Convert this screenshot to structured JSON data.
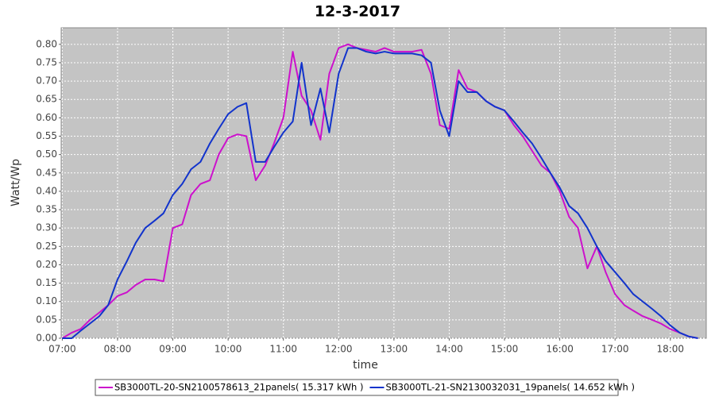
{
  "chart_data": {
    "type": "line",
    "title": "12-3-2017",
    "x_label": "time",
    "y_label": "Watt/Wp",
    "x": [
      7,
      7.17,
      7.33,
      7.5,
      7.67,
      7.83,
      8,
      8.17,
      8.33,
      8.5,
      8.67,
      8.83,
      9,
      9.17,
      9.33,
      9.5,
      9.67,
      9.83,
      10,
      10.17,
      10.33,
      10.5,
      10.67,
      10.83,
      11,
      11.17,
      11.33,
      11.5,
      11.67,
      11.83,
      12,
      12.17,
      12.33,
      12.5,
      12.67,
      12.83,
      13,
      13.17,
      13.33,
      13.5,
      13.67,
      13.83,
      14,
      14.17,
      14.33,
      14.5,
      14.67,
      14.83,
      15,
      15.17,
      15.33,
      15.5,
      15.67,
      15.83,
      16,
      16.17,
      16.33,
      16.5,
      16.67,
      16.83,
      17,
      17.17,
      17.33,
      17.5,
      17.67,
      17.83,
      18,
      18.17,
      18.33,
      18.5
    ],
    "series": [
      {
        "name": "SB3000TL-20-SN2100578613_21panels( 15.317 kWh )",
        "color": "#cc11cc",
        "values": [
          0,
          0.015,
          0.025,
          0.05,
          0.07,
          0.09,
          0.115,
          0.125,
          0.145,
          0.16,
          0.16,
          0.155,
          0.3,
          0.31,
          0.39,
          0.42,
          0.43,
          0.5,
          0.545,
          0.555,
          0.55,
          0.43,
          0.47,
          0.53,
          0.6,
          0.78,
          0.66,
          0.62,
          0.54,
          0.72,
          0.79,
          0.8,
          0.79,
          0.785,
          0.78,
          0.79,
          0.78,
          0.78,
          0.78,
          0.785,
          0.72,
          0.58,
          0.57,
          0.73,
          0.68,
          0.67,
          0.645,
          0.63,
          0.62,
          0.58,
          0.55,
          0.51,
          0.47,
          0.45,
          0.4,
          0.33,
          0.3,
          0.19,
          0.25,
          0.18,
          0.12,
          0.09,
          0.075,
          0.06,
          0.05,
          0.04,
          0.025,
          0.015,
          0.005,
          0
        ]
      },
      {
        "name": "SB3000TL-21-SN2130032031_19panels( 14.652 kWh )",
        "color": "#1133cc",
        "values": [
          0,
          0,
          0.02,
          0.04,
          0.06,
          0.09,
          0.16,
          0.21,
          0.26,
          0.3,
          0.32,
          0.34,
          0.39,
          0.42,
          0.46,
          0.48,
          0.53,
          0.57,
          0.61,
          0.63,
          0.64,
          0.48,
          0.48,
          0.52,
          0.56,
          0.59,
          0.75,
          0.58,
          0.68,
          0.56,
          0.72,
          0.79,
          0.79,
          0.78,
          0.775,
          0.78,
          0.775,
          0.775,
          0.775,
          0.77,
          0.75,
          0.62,
          0.55,
          0.7,
          0.67,
          0.67,
          0.645,
          0.63,
          0.62,
          0.59,
          0.56,
          0.53,
          0.49,
          0.45,
          0.41,
          0.36,
          0.34,
          0.3,
          0.25,
          0.21,
          0.18,
          0.15,
          0.12,
          0.1,
          0.08,
          0.06,
          0.035,
          0.015,
          0.005,
          0
        ]
      }
    ],
    "xlim": [
      6.98,
      18.65
    ],
    "ylim": [
      0,
      0.845
    ],
    "xticks": [
      {
        "value": 7,
        "label": "07:00"
      },
      {
        "value": 8,
        "label": "08:00"
      },
      {
        "value": 9,
        "label": "09:00"
      },
      {
        "value": 10,
        "label": "10:00"
      },
      {
        "value": 11,
        "label": "11:00"
      },
      {
        "value": 12,
        "label": "12:00"
      },
      {
        "value": 13,
        "label": "13:00"
      },
      {
        "value": 14,
        "label": "14:00"
      },
      {
        "value": 15,
        "label": "15:00"
      },
      {
        "value": 16,
        "label": "16:00"
      },
      {
        "value": 17,
        "label": "17:00"
      },
      {
        "value": 18,
        "label": "18:00"
      }
    ],
    "yticks": [
      {
        "value": 0,
        "label": "0.00"
      },
      {
        "value": 0.05,
        "label": "0.05"
      },
      {
        "value": 0.1,
        "label": "0.10"
      },
      {
        "value": 0.15,
        "label": "0.15"
      },
      {
        "value": 0.2,
        "label": "0.20"
      },
      {
        "value": 0.25,
        "label": "0.25"
      },
      {
        "value": 0.3,
        "label": "0.30"
      },
      {
        "value": 0.35,
        "label": "0.35"
      },
      {
        "value": 0.4,
        "label": "0.40"
      },
      {
        "value": 0.45,
        "label": "0.45"
      },
      {
        "value": 0.5,
        "label": "0.50"
      },
      {
        "value": 0.55,
        "label": "0.55"
      },
      {
        "value": 0.6,
        "label": "0.60"
      },
      {
        "value": 0.65,
        "label": "0.65"
      },
      {
        "value": 0.7,
        "label": "0.70"
      },
      {
        "value": 0.75,
        "label": "0.75"
      },
      {
        "value": 0.8,
        "label": "0.80"
      }
    ],
    "grid": true,
    "legend": "bottom"
  }
}
